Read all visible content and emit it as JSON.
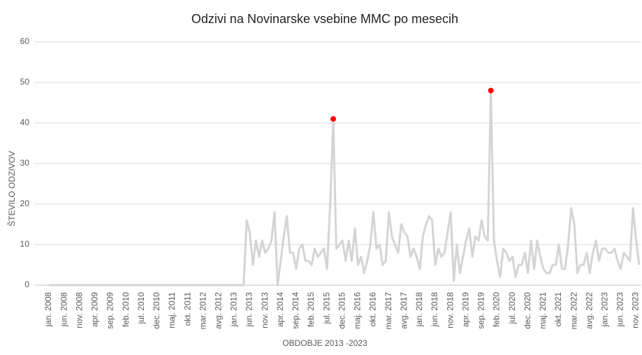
{
  "chart_data": {
    "type": "line",
    "title": "Odzivi na Novinarske vsebine MMC po mesecih",
    "x_label": "OBDOBJE 2013 -2023",
    "y_label": "ŠTEVILO ODZIVOV",
    "categories": [
      "jan. 2008",
      null,
      null,
      null,
      null,
      "jun. 2008",
      null,
      null,
      null,
      null,
      "nov. 2008",
      null,
      null,
      null,
      null,
      "apr. 2009",
      null,
      null,
      null,
      null,
      "sep. 2009",
      null,
      null,
      null,
      null,
      "feb. 2010",
      null,
      null,
      null,
      null,
      "jul. 2010",
      null,
      null,
      null,
      null,
      "dec. 2010",
      null,
      null,
      null,
      null,
      "maj. 2011",
      null,
      null,
      null,
      null,
      "okt. 2011",
      null,
      null,
      null,
      null,
      "mar. 2012",
      null,
      null,
      null,
      null,
      "avg. 2012",
      null,
      null,
      null,
      null,
      "jan. 2013",
      null,
      null,
      null,
      null,
      "jun. 2013",
      null,
      null,
      null,
      null,
      "nov. 2013",
      null,
      null,
      null,
      null,
      "apr. 2014",
      null,
      null,
      null,
      null,
      "sep. 2014",
      null,
      null,
      null,
      null,
      "feb. 2015",
      null,
      null,
      null,
      null,
      "jul. 2015",
      null,
      null,
      null,
      null,
      "dec. 2015",
      null,
      null,
      null,
      null,
      "maj. 2016",
      null,
      null,
      null,
      null,
      "okt. 2016",
      null,
      null,
      null,
      null,
      "mar. 2017",
      null,
      null,
      null,
      null,
      "avg. 2017",
      null,
      null,
      null,
      null,
      "jan. 2018",
      null,
      null,
      null,
      null,
      "jun. 2018",
      null,
      null,
      null,
      null,
      "nov. 2018",
      null,
      null,
      null,
      null,
      "apr. 2019",
      null,
      null,
      null,
      null,
      "sep. 2019",
      null,
      null,
      null,
      null,
      "feb. 2020",
      null,
      null,
      null,
      null,
      "jul. 2020",
      null,
      null,
      null,
      null,
      "dec. 2020",
      null,
      null,
      null,
      null,
      "maj. 2021",
      null,
      null,
      null,
      null,
      "okt. 2021",
      null,
      null,
      null,
      null,
      "mar. 2022",
      null,
      null,
      null,
      null,
      "avg. 2022",
      null,
      null,
      null,
      null,
      "jan. 2023",
      null,
      null,
      null,
      null,
      "jun. 2023",
      null,
      null,
      null,
      null,
      "nov. 2023",
      null
    ],
    "series": [
      {
        "color": "#d4d4d4",
        "style": "line",
        "values": [
          0,
          0,
          0,
          0,
          0,
          0,
          0,
          0,
          0,
          0,
          0,
          0,
          0,
          0,
          0,
          0,
          0,
          0,
          0,
          0,
          0,
          0,
          0,
          0,
          0,
          0,
          0,
          0,
          0,
          0,
          0,
          0,
          0,
          0,
          0,
          0,
          0,
          0,
          0,
          0,
          0,
          0,
          0,
          0,
          0,
          0,
          0,
          0,
          0,
          0,
          0,
          0,
          0,
          0,
          0,
          0,
          0,
          0,
          0,
          0,
          0,
          0,
          0,
          0,
          16,
          13,
          5,
          11,
          7,
          11,
          8,
          9,
          11,
          18,
          0,
          6,
          12,
          17,
          8,
          8,
          4,
          9,
          10,
          6,
          6,
          5,
          9,
          7,
          8,
          9,
          4,
          20,
          41,
          9,
          10,
          11,
          6,
          11,
          6,
          14,
          5,
          7,
          3,
          6,
          10,
          18,
          9,
          10,
          5,
          6,
          18,
          12,
          10,
          8,
          15,
          13,
          12,
          7,
          9,
          7,
          4,
          12,
          15,
          17,
          16,
          5,
          9,
          7,
          8,
          13,
          18,
          1,
          10,
          3,
          7,
          11,
          14,
          7,
          12,
          11,
          16,
          12,
          11,
          48,
          11,
          6,
          2,
          9,
          8,
          6,
          7,
          2,
          5,
          5,
          8,
          3,
          11,
          4,
          11,
          7,
          4,
          3,
          3,
          5,
          5,
          10,
          4,
          4,
          10,
          19,
          15,
          3,
          5,
          5,
          8,
          3,
          8,
          11,
          6,
          9,
          9,
          8,
          8,
          9,
          6,
          4,
          8,
          7,
          6,
          19,
          11,
          5
        ]
      },
      {
        "color": "#ff0000",
        "style": "markers",
        "values": [
          null,
          null,
          null,
          null,
          null,
          null,
          null,
          null,
          null,
          null,
          null,
          null,
          null,
          null,
          null,
          null,
          null,
          null,
          null,
          null,
          null,
          null,
          null,
          null,
          null,
          null,
          null,
          null,
          null,
          null,
          null,
          null,
          null,
          null,
          null,
          null,
          null,
          null,
          null,
          null,
          null,
          null,
          null,
          null,
          null,
          null,
          null,
          null,
          null,
          null,
          null,
          null,
          null,
          null,
          null,
          null,
          null,
          null,
          null,
          null,
          null,
          null,
          null,
          null,
          null,
          null,
          null,
          null,
          null,
          null,
          null,
          null,
          null,
          null,
          null,
          null,
          null,
          null,
          null,
          null,
          null,
          null,
          null,
          null,
          null,
          null,
          null,
          null,
          null,
          null,
          null,
          null,
          41,
          null,
          null,
          null,
          null,
          null,
          null,
          null,
          null,
          null,
          null,
          null,
          null,
          null,
          null,
          null,
          null,
          null,
          null,
          null,
          null,
          null,
          null,
          null,
          null,
          null,
          null,
          null,
          null,
          null,
          null,
          null,
          null,
          null,
          null,
          null,
          null,
          null,
          null,
          null,
          null,
          null,
          null,
          null,
          null,
          null,
          null,
          null,
          null,
          null,
          null,
          48,
          null,
          null,
          null,
          null,
          null,
          null,
          null,
          null,
          null,
          null,
          null,
          null,
          null,
          null,
          null,
          null,
          null,
          null,
          null,
          null,
          null,
          null,
          null,
          null,
          null,
          null,
          null,
          null,
          null,
          null,
          null,
          null,
          null,
          null,
          null,
          null,
          null,
          null,
          null,
          null,
          null,
          null,
          null,
          null,
          null,
          null,
          null,
          null
        ]
      }
    ],
    "ylim": [
      0,
      60
    ],
    "yticks": [
      0,
      10,
      20,
      30,
      40,
      50,
      60
    ],
    "grid": true,
    "legend": false
  }
}
